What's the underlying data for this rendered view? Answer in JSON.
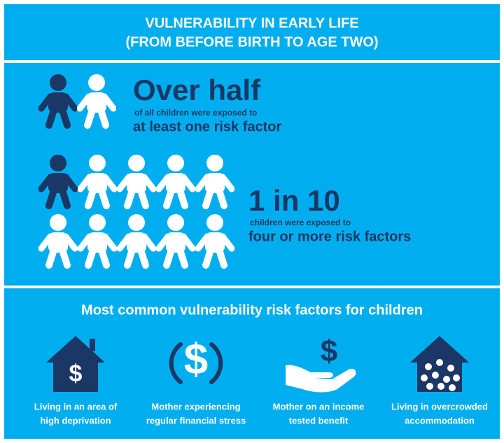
{
  "header": {
    "title_lines": [
      "VULNERABILITY IN EARLY LIFE",
      "(FROM BEFORE BIRTH TO AGE TWO)"
    ]
  },
  "stats": [
    {
      "headline": "Over half",
      "sub": "of all children were exposed to",
      "emphasis": "at least one risk factor"
    },
    {
      "headline": "1 in 10",
      "sub": "children were exposed to",
      "emphasis": "four or more risk factors"
    }
  ],
  "risk_factors": {
    "title": "Most common vulnerability risk factors for children",
    "items": [
      {
        "lines": [
          "Living in an area of",
          "high deprivation"
        ]
      },
      {
        "lines": [
          "Mother experiencing",
          "regular financial stress"
        ]
      },
      {
        "lines": [
          "Mother on an income",
          "tested benefit"
        ]
      },
      {
        "lines": [
          "Living in overcrowded",
          "accommodation"
        ]
      }
    ]
  }
}
